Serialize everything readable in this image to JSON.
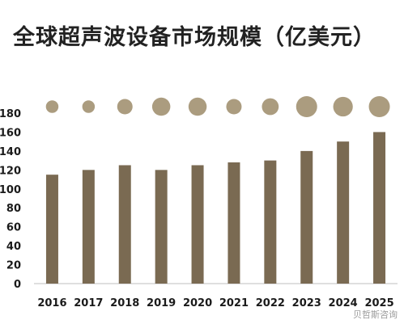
{
  "chart_data": {
    "type": "bar",
    "title": "全球超声波设备市场规模（亿美元）",
    "categories": [
      "2016",
      "2017",
      "2018",
      "2019",
      "2020",
      "2021",
      "2022",
      "2023",
      "2024",
      "2025"
    ],
    "values": [
      115,
      120,
      125,
      120,
      125,
      128,
      130,
      140,
      150,
      160
    ],
    "bubble_values": [
      1,
      1,
      2,
      3,
      3,
      2,
      2.5,
      4,
      3.5,
      4
    ],
    "ylim": [
      0,
      180
    ],
    "yticks": [
      0,
      20,
      40,
      60,
      80,
      100,
      120,
      140,
      160,
      180
    ],
    "grid": false,
    "bar_color": "#7a6a52",
    "bubble_color": "#ab9c7f"
  },
  "watermark": "贝哲斯咨询"
}
